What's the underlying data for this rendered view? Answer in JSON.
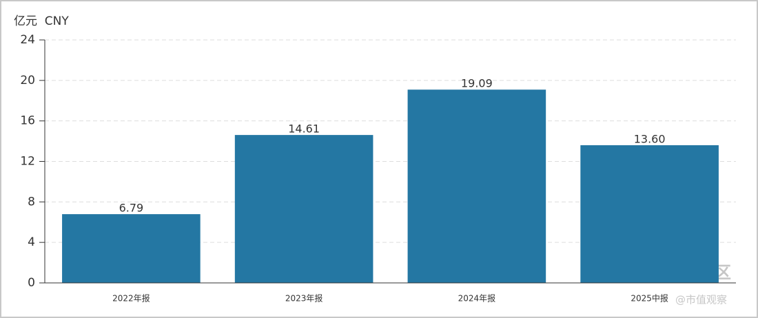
{
  "chart_data": {
    "type": "bar",
    "y_label": "亿元  CNY",
    "categories": [
      "2022年报",
      "2023年报",
      "2024年报",
      "2025中报"
    ],
    "values": [
      6.79,
      14.61,
      19.09,
      13.6
    ],
    "value_labels": [
      "6.79",
      "14.61",
      "19.09",
      "13.60"
    ],
    "color": "#2477a3",
    "ylim": [
      0,
      24
    ],
    "yticks": [
      0,
      4,
      8,
      12,
      16,
      20,
      24
    ],
    "grid": true,
    "annotations": [
      "老虎社区",
      "@市值观察"
    ]
  }
}
